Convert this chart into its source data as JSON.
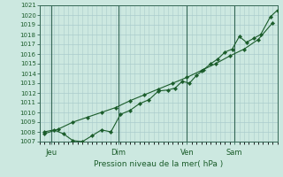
{
  "xlabel": "Pression niveau de la mer( hPa )",
  "bg_color": "#cce8e0",
  "grid_color": "#aacccc",
  "line_color": "#1a5c2a",
  "vline_color": "#336655",
  "spine_color": "#336655",
  "ylim": [
    1007,
    1021
  ],
  "yticks": [
    1007,
    1008,
    1009,
    1010,
    1011,
    1012,
    1013,
    1014,
    1015,
    1016,
    1017,
    1018,
    1019,
    1020,
    1021
  ],
  "day_labels": [
    "Jeu",
    "Dim",
    "Ven",
    "Sam"
  ],
  "day_positions": [
    0.05,
    0.33,
    0.62,
    0.82
  ],
  "xlim": [
    0,
    1.0
  ],
  "line1_x": [
    0.02,
    0.06,
    0.1,
    0.14,
    0.18,
    0.22,
    0.26,
    0.3,
    0.34,
    0.38,
    0.42,
    0.46,
    0.5,
    0.54,
    0.57,
    0.6,
    0.63,
    0.66,
    0.69,
    0.72,
    0.75,
    0.78,
    0.81,
    0.84,
    0.87,
    0.9,
    0.93,
    0.97,
    1.0
  ],
  "line1_y": [
    1008.0,
    1008.2,
    1007.8,
    1007.1,
    1007.0,
    1007.6,
    1008.2,
    1008.0,
    1009.8,
    1010.2,
    1010.9,
    1011.3,
    1012.2,
    1012.3,
    1012.5,
    1013.2,
    1013.0,
    1013.8,
    1014.4,
    1015.0,
    1015.5,
    1016.2,
    1016.5,
    1017.8,
    1017.2,
    1017.6,
    1018.0,
    1019.8,
    1020.5
  ],
  "line2_x": [
    0.02,
    0.08,
    0.14,
    0.2,
    0.26,
    0.32,
    0.38,
    0.44,
    0.5,
    0.56,
    0.62,
    0.68,
    0.74,
    0.8,
    0.86,
    0.92,
    0.98
  ],
  "line2_y": [
    1007.8,
    1008.3,
    1009.0,
    1009.5,
    1010.0,
    1010.5,
    1011.2,
    1011.8,
    1012.4,
    1013.0,
    1013.6,
    1014.3,
    1015.0,
    1015.8,
    1016.5,
    1017.5,
    1019.2
  ]
}
